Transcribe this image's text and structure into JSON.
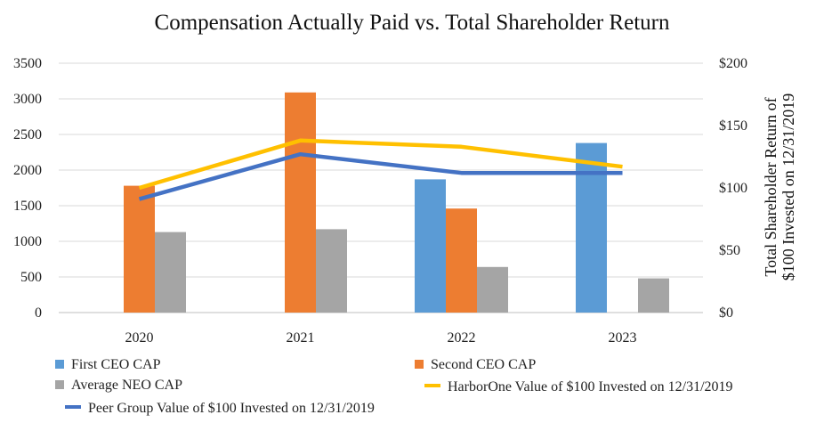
{
  "chart_data": {
    "type": "bar",
    "title": "Compensation Actually Paid vs. Total Shareholder Return",
    "categories": [
      "2020",
      "2021",
      "2022",
      "2023"
    ],
    "xlabel": "",
    "ylabel": "",
    "ylim": [
      0,
      3500
    ],
    "yticks": [
      "0",
      "500",
      "1000",
      "1500",
      "2000",
      "2500",
      "3000",
      "3500"
    ],
    "y2label": [
      "Total Shareholder Return of",
      "$100 Invested on 12/31/2019"
    ],
    "y2lim": [
      0,
      200
    ],
    "y2ticks": [
      "$0",
      "$50",
      "$100",
      "$150",
      "$200"
    ],
    "grid": true,
    "series": [
      {
        "name": "First CEO CAP",
        "type": "bar",
        "axis": "left",
        "color": "#5B9BD5",
        "values": [
          null,
          null,
          1870,
          2380
        ]
      },
      {
        "name": "Second CEO CAP",
        "type": "bar",
        "axis": "left",
        "color": "#ED7D31",
        "values": [
          1780,
          3090,
          1460,
          null
        ]
      },
      {
        "name": "Average NEO CAP",
        "type": "bar",
        "axis": "left",
        "color": "#A5A5A5",
        "values": [
          1130,
          1170,
          640,
          480
        ]
      },
      {
        "name": "HarborOne Value of $100 Invested on 12/31/2019",
        "type": "line",
        "axis": "right",
        "color": "#FFC000",
        "values": [
          100,
          138,
          133,
          117
        ]
      },
      {
        "name": "Peer Group Value of $100 Invested on 12/31/2019",
        "type": "line",
        "axis": "right",
        "color": "#4472C4",
        "values": [
          91,
          127,
          112,
          112
        ]
      }
    ]
  }
}
